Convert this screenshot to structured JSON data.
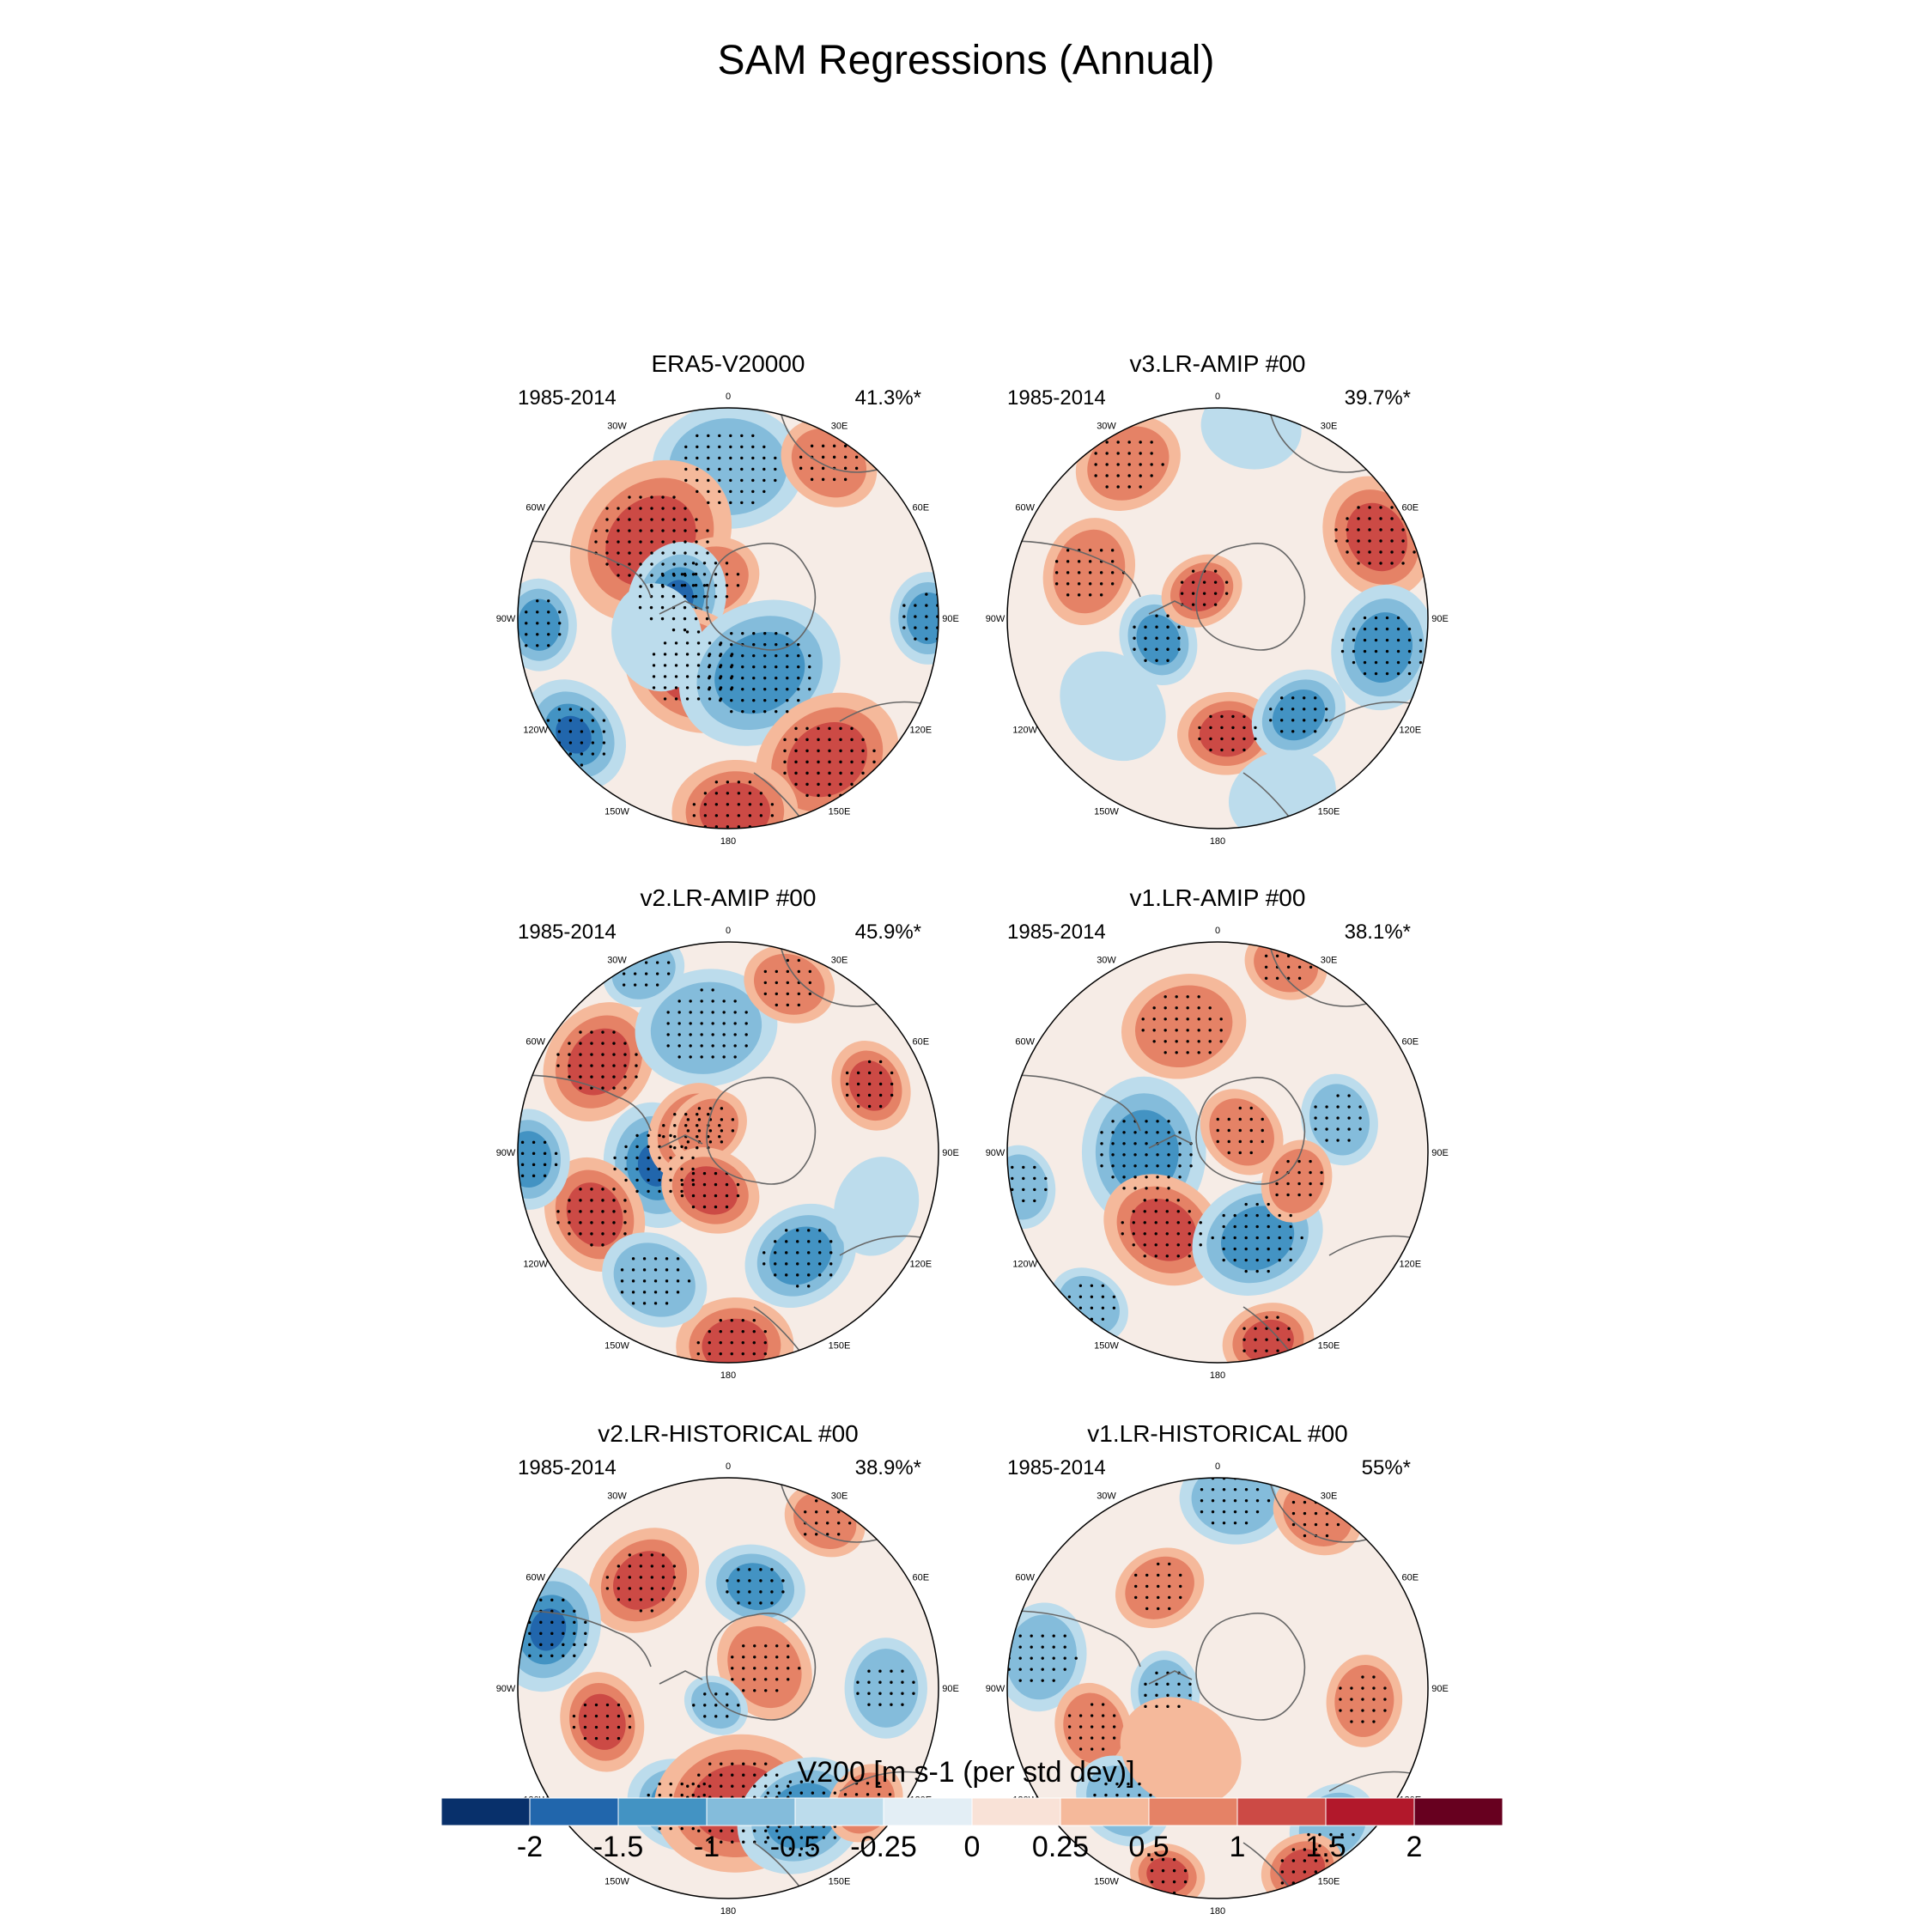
{
  "title": "SAM Regressions (Annual)",
  "colorbar": {
    "title": "V200 [m s-1 (per std dev)]",
    "tick_labels": [
      "-2",
      "-1.5",
      "-1",
      "-0.5",
      "-0.25",
      "0",
      "0.25",
      "0.5",
      "1",
      "1.5",
      "2"
    ],
    "colors": [
      "#08306b",
      "#2166ac",
      "#4393c3",
      "#84bcdb",
      "#bcdcec",
      "#e3eef5",
      "#f9e2d7",
      "#f5b99b",
      "#e58266",
      "#cc4a45",
      "#b2182b",
      "#67001f"
    ]
  },
  "longitude_labels": [
    "0",
    "30E",
    "60E",
    "90E",
    "120E",
    "150E",
    "180",
    "150W",
    "120W",
    "90W",
    "60W",
    "30W"
  ],
  "panels": [
    {
      "title": "ERA5-V20000",
      "period": "1985-2014",
      "variance": "41.3%*",
      "anomalies": [
        [
          0,
          0.72,
          -0.9,
          0.36
        ],
        [
          33,
          0.88,
          0.7,
          0.24
        ],
        [
          -45,
          0.52,
          1.3,
          0.42
        ],
        [
          -25,
          0.2,
          0.9,
          0.24
        ],
        [
          -70,
          0.26,
          -1.5,
          0.28
        ],
        [
          -92,
          0.9,
          -1.1,
          0.22
        ],
        [
          -145,
          0.3,
          1.9,
          0.34
        ],
        [
          150,
          0.3,
          -1.3,
          0.4
        ],
        [
          -127,
          0.92,
          -1.6,
          0.28
        ],
        [
          145,
          0.82,
          1.0,
          0.36
        ],
        [
          178,
          0.92,
          1.4,
          0.3
        ],
        [
          90,
          0.95,
          -1.2,
          0.22
        ],
        [
          -105,
          0.35,
          -0.4,
          0.26
        ]
      ]
    },
    {
      "title": "v3.LR-AMIP  #00",
      "period": "1985-2014",
      "variance": "39.7%*",
      "anomalies": [
        [
          -30,
          0.85,
          0.5,
          0.26
        ],
        [
          10,
          0.92,
          -0.3,
          0.24
        ],
        [
          63,
          0.85,
          1.4,
          0.3
        ],
        [
          100,
          0.8,
          -1.2,
          0.3
        ],
        [
          -110,
          0.3,
          -1.1,
          0.22
        ],
        [
          -30,
          0.15,
          1.0,
          0.2
        ],
        [
          175,
          0.55,
          1.2,
          0.24
        ],
        [
          140,
          0.6,
          -1.2,
          0.24
        ],
        [
          -70,
          0.65,
          0.6,
          0.26
        ],
        [
          -130,
          0.65,
          -0.3,
          0.28
        ],
        [
          160,
          0.9,
          -0.4,
          0.26
        ]
      ]
    },
    {
      "title": "v2.LR-AMIP  #00",
      "period": "1985-2014",
      "variance": "45.9%*",
      "anomalies": [
        [
          -55,
          0.75,
          1.3,
          0.3
        ],
        [
          -10,
          0.6,
          -0.6,
          0.34
        ],
        [
          -25,
          0.95,
          -0.8,
          0.2
        ],
        [
          -100,
          0.35,
          -1.5,
          0.3
        ],
        [
          -60,
          0.2,
          0.6,
          0.24
        ],
        [
          -40,
          0.15,
          0.8,
          0.2
        ],
        [
          65,
          0.75,
          1.1,
          0.22
        ],
        [
          -155,
          0.2,
          1.1,
          0.24
        ],
        [
          -115,
          0.7,
          1.3,
          0.28
        ],
        [
          145,
          0.6,
          -1.1,
          0.28
        ],
        [
          -92,
          0.95,
          -1.4,
          0.24
        ],
        [
          178,
          0.92,
          1.1,
          0.28
        ],
        [
          -150,
          0.7,
          -0.6,
          0.26
        ],
        [
          110,
          0.75,
          -0.4,
          0.24
        ],
        [
          20,
          0.85,
          0.5,
          0.22
        ]
      ]
    },
    {
      "title": "v1.LR-AMIP  #00",
      "period": "1985-2014",
      "variance": "38.1%*",
      "anomalies": [
        [
          -90,
          0.35,
          -1.3,
          0.36
        ],
        [
          50,
          0.15,
          0.9,
          0.22
        ],
        [
          -145,
          0.45,
          1.2,
          0.3
        ],
        [
          155,
          0.45,
          -1.1,
          0.32
        ],
        [
          75,
          0.6,
          -0.8,
          0.22
        ],
        [
          110,
          0.4,
          0.9,
          0.2
        ],
        [
          165,
          0.93,
          1.1,
          0.22
        ],
        [
          -15,
          0.62,
          0.5,
          0.3
        ],
        [
          20,
          0.95,
          0.6,
          0.2
        ],
        [
          -100,
          0.95,
          -0.6,
          0.2
        ],
        [
          -140,
          0.95,
          -0.7,
          0.2
        ]
      ]
    },
    {
      "title": "v2.LR-HISTORICAL  #00",
      "period": "1985-2014",
      "variance": "38.9%*",
      "anomalies": [
        [
          -38,
          0.65,
          1.1,
          0.28
        ],
        [
          15,
          0.5,
          -1.0,
          0.24
        ],
        [
          -72,
          0.9,
          -1.5,
          0.3
        ],
        [
          60,
          0.2,
          0.8,
          0.26
        ],
        [
          -145,
          0.1,
          -0.8,
          0.16
        ],
        [
          -105,
          0.62,
          1.1,
          0.24
        ],
        [
          -158,
          0.6,
          -1.4,
          0.26
        ],
        [
          175,
          0.55,
          1.1,
          0.4
        ],
        [
          150,
          0.7,
          -1.1,
          0.32
        ],
        [
          30,
          0.92,
          0.7,
          0.2
        ],
        [
          90,
          0.75,
          -0.5,
          0.24
        ],
        [
          130,
          0.85,
          0.5,
          0.2
        ]
      ]
    },
    {
      "title": "v1.LR-HISTORICAL  #00",
      "period": "1985-2014",
      "variance": "55%*",
      "anomalies": [
        [
          5,
          0.9,
          -0.9,
          0.26
        ],
        [
          -30,
          0.55,
          0.9,
          0.22
        ],
        [
          -95,
          0.25,
          -0.7,
          0.2
        ],
        [
          -80,
          0.85,
          -0.8,
          0.26
        ],
        [
          -108,
          0.62,
          0.8,
          0.22
        ],
        [
          -140,
          0.7,
          -0.9,
          0.24
        ],
        [
          -165,
          0.92,
          1.1,
          0.18
        ],
        [
          140,
          0.85,
          -0.7,
          0.22
        ],
        [
          155,
          0.95,
          1.0,
          0.2
        ],
        [
          30,
          0.95,
          0.6,
          0.22
        ],
        [
          95,
          0.7,
          0.5,
          0.22
        ],
        [
          -150,
          0.35,
          0.3,
          0.3
        ]
      ]
    }
  ]
}
